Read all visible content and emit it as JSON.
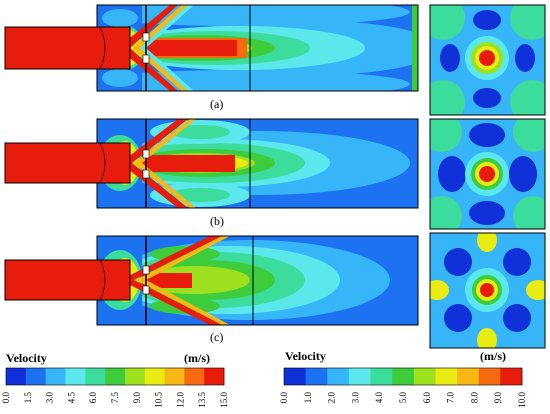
{
  "panels": [
    {
      "label": "(a)"
    },
    {
      "label": "(b)"
    },
    {
      "label": "(c)"
    }
  ],
  "legend_left": {
    "title": "Velocity",
    "unit": "(m/s)",
    "ticks": [
      "0.0",
      "1.5",
      "3.0",
      "4.5",
      "6.0",
      "7.5",
      "9.0",
      "10.5",
      "12.0",
      "13.5",
      "15.0"
    ]
  },
  "legend_right": {
    "title": "Velocity",
    "unit": "(m/s)",
    "ticks": [
      "0.0",
      "1.0",
      "2.0",
      "3.0",
      "4.0",
      "5.0",
      "6.0",
      "7.0",
      "8.0",
      "9.0",
      "10.0"
    ]
  },
  "colors": {
    "scale": [
      "#1030d8",
      "#1c72f0",
      "#36b6f8",
      "#5ae8ec",
      "#3cdc9c",
      "#3ccc3c",
      "#9ce01e",
      "#e8ec10",
      "#f8b814",
      "#f86a10",
      "#e81c0c"
    ]
  }
}
